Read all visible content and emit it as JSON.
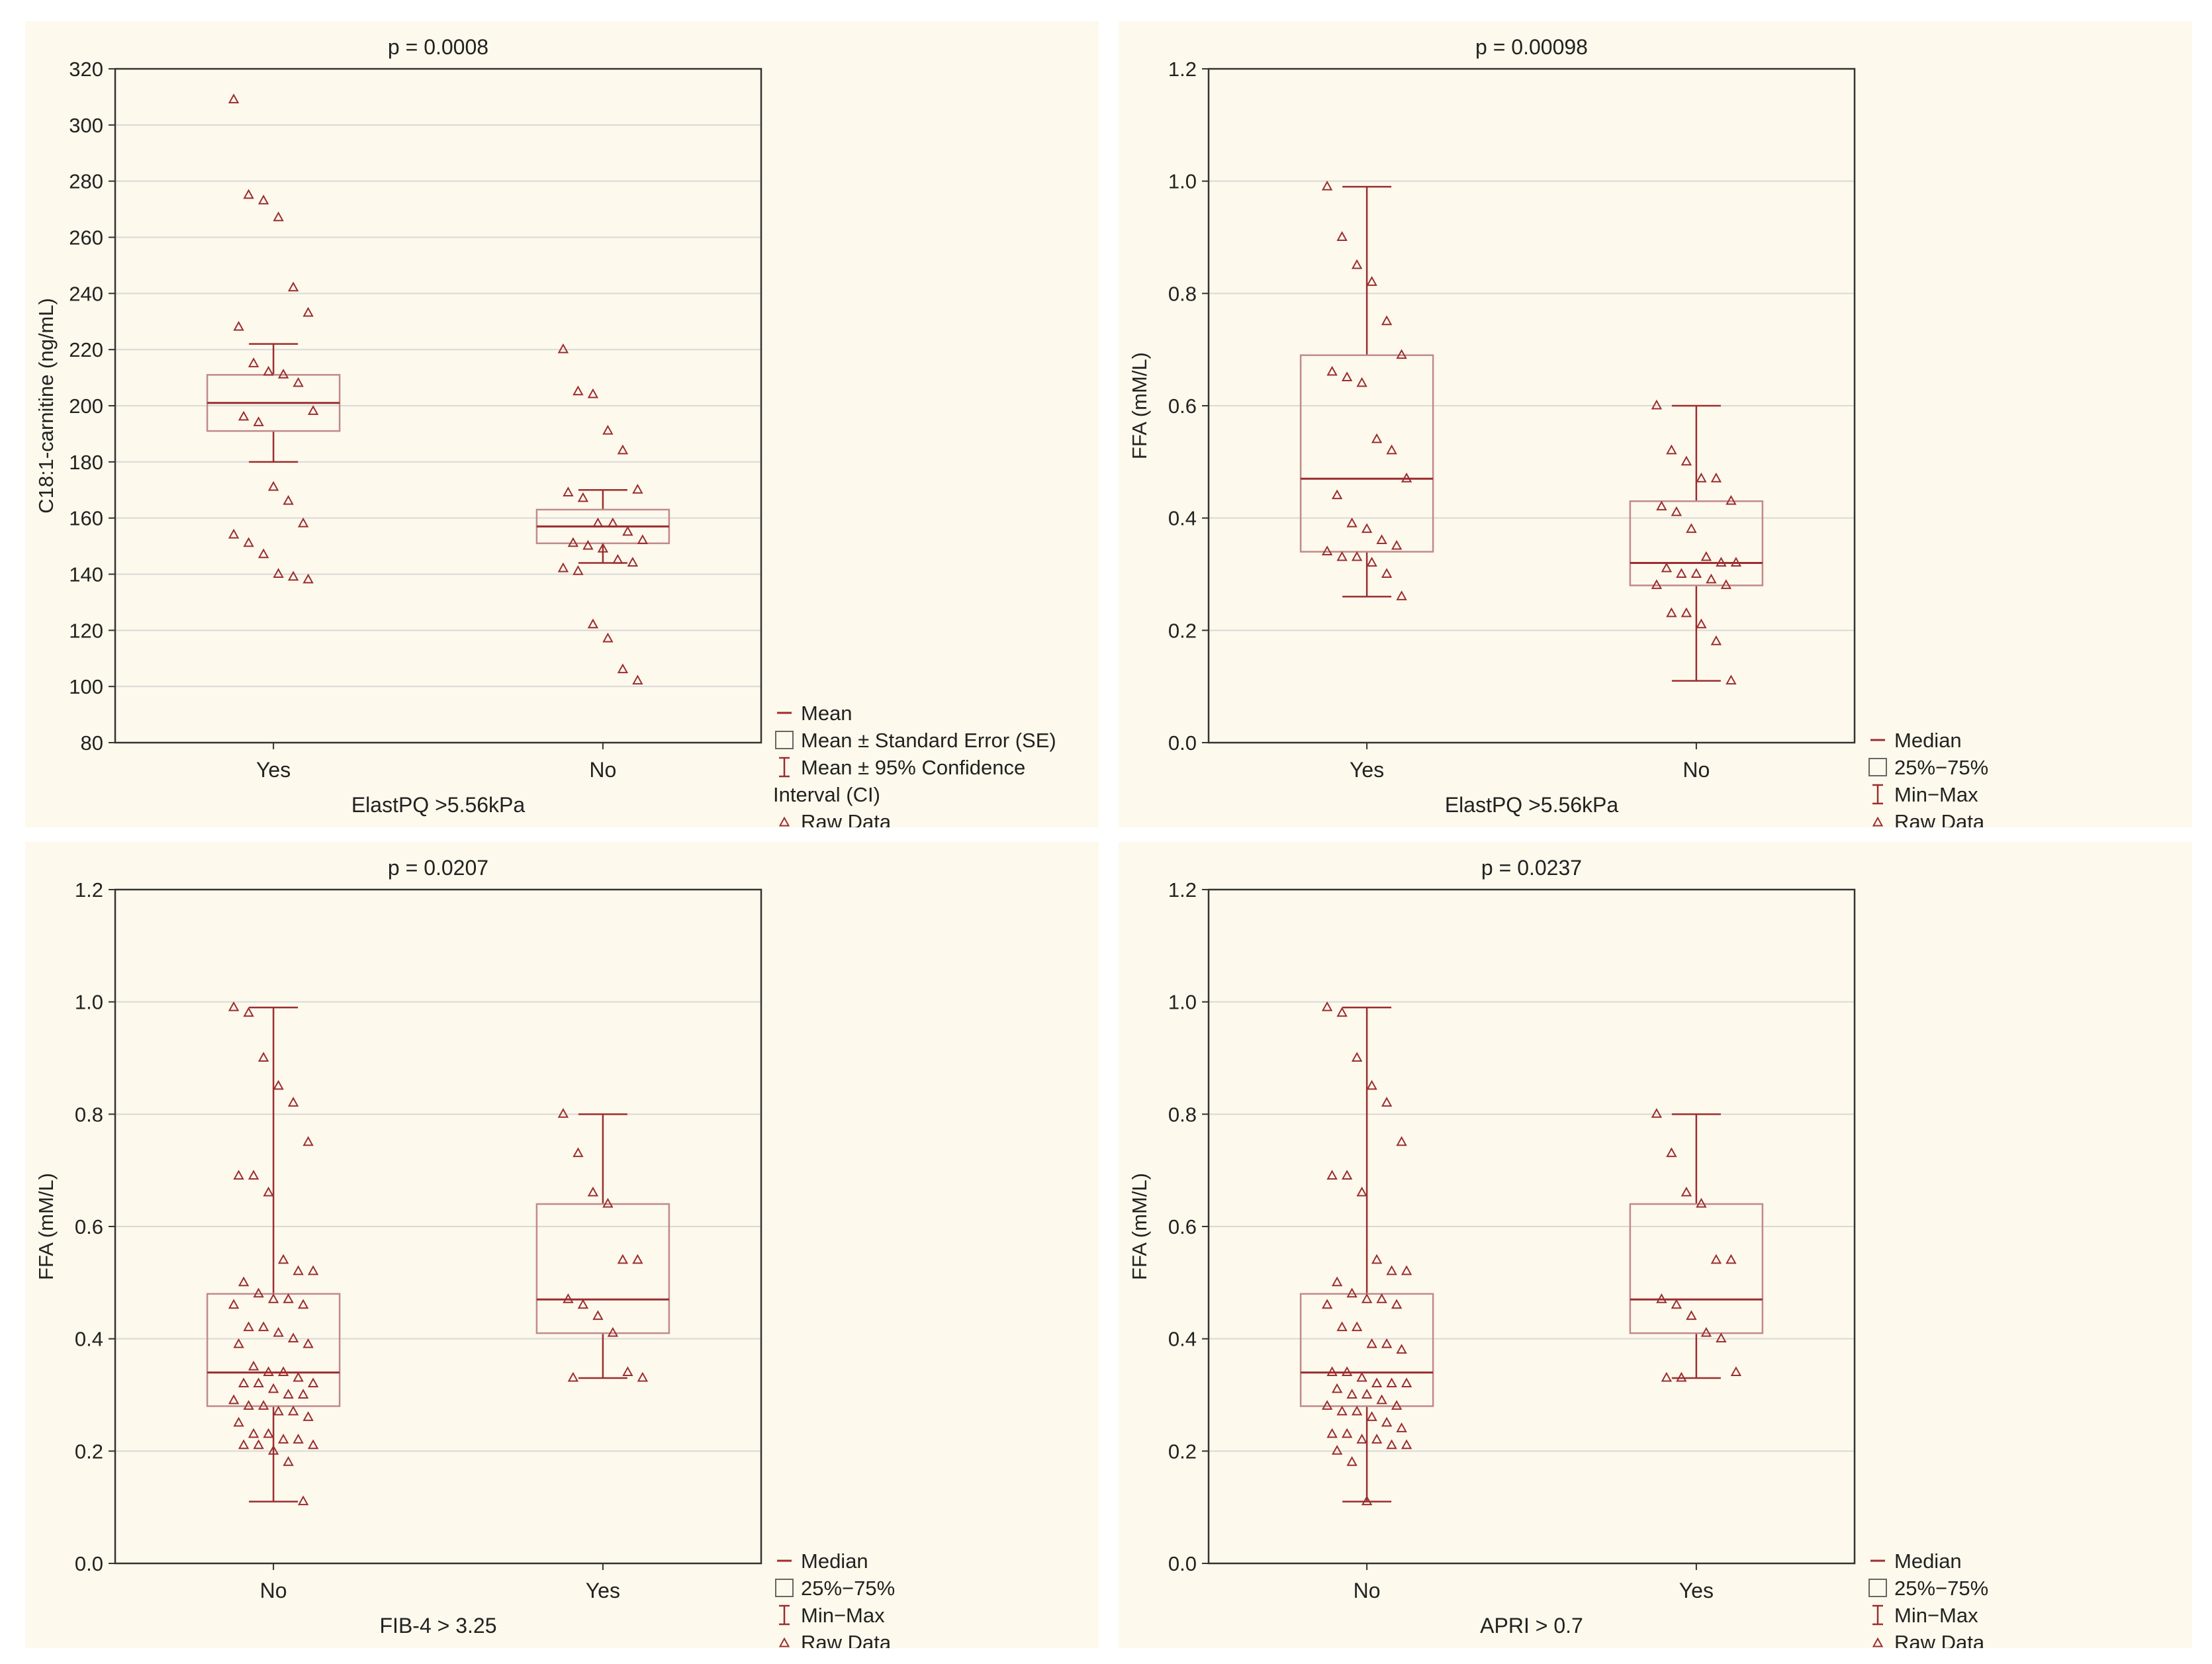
{
  "chart_data": [
    {
      "type": "box",
      "title": "p = 0.0008",
      "xlabel": "ElastPQ >5.56kPa",
      "ylabel": "C18:1-carnitine (ng/mL)",
      "ylim": [
        80,
        320
      ],
      "yticks": [
        80,
        100,
        120,
        140,
        160,
        180,
        200,
        220,
        240,
        260,
        280,
        300,
        320
      ],
      "categories": [
        "Yes",
        "No"
      ],
      "boxes": [
        {
          "center": 201,
          "box_low": 191,
          "box_high": 211,
          "whisker_low": 180,
          "whisker_high": 222
        },
        {
          "center": 157,
          "box_low": 151,
          "box_high": 163,
          "whisker_low": 144,
          "whisker_high": 170
        }
      ],
      "raw": [
        [
          309,
          275,
          273,
          267,
          242,
          233,
          228,
          215,
          212,
          211,
          208,
          198,
          196,
          194,
          171,
          166,
          158,
          154,
          151,
          147,
          140,
          139,
          138
        ],
        [
          220,
          205,
          204,
          191,
          184,
          170,
          169,
          167,
          158,
          158,
          155,
          152,
          151,
          150,
          149,
          145,
          144,
          142,
          141,
          122,
          117,
          106,
          102
        ]
      ],
      "legend": [
        "Mean",
        "Mean ± Standard Error (SE)",
        "Mean ± 95% Confidence",
        "Interval (CI)",
        "Raw Data"
      ]
    },
    {
      "type": "box",
      "title": "p = 0.00098",
      "xlabel": "ElastPQ >5.56kPa",
      "ylabel": "FFA (mM/L)",
      "ylim": [
        0.0,
        1.2
      ],
      "yticks": [
        0.0,
        0.2,
        0.4,
        0.6,
        0.8,
        1.0,
        1.2
      ],
      "categories": [
        "Yes",
        "No"
      ],
      "boxes": [
        {
          "center": 0.47,
          "box_low": 0.34,
          "box_high": 0.69,
          "whisker_low": 0.26,
          "whisker_high": 0.99
        },
        {
          "center": 0.32,
          "box_low": 0.28,
          "box_high": 0.43,
          "whisker_low": 0.11,
          "whisker_high": 0.6
        }
      ],
      "raw": [
        [
          0.99,
          0.9,
          0.85,
          0.82,
          0.75,
          0.69,
          0.66,
          0.65,
          0.64,
          0.54,
          0.52,
          0.47,
          0.44,
          0.39,
          0.38,
          0.36,
          0.35,
          0.34,
          0.33,
          0.33,
          0.32,
          0.3,
          0.26
        ],
        [
          0.6,
          0.52,
          0.5,
          0.47,
          0.47,
          0.43,
          0.42,
          0.41,
          0.38,
          0.33,
          0.32,
          0.32,
          0.31,
          0.3,
          0.3,
          0.29,
          0.28,
          0.28,
          0.23,
          0.23,
          0.21,
          0.18,
          0.11
        ]
      ],
      "legend": [
        "Median",
        "25%−75%",
        "Min−Max",
        "Raw Data"
      ]
    },
    {
      "type": "box",
      "title": "p = 0.0207",
      "xlabel": "FIB-4 > 3.25",
      "ylabel": "FFA (mM/L)",
      "ylim": [
        0.0,
        1.2
      ],
      "yticks": [
        0.0,
        0.2,
        0.4,
        0.6,
        0.8,
        1.0,
        1.2
      ],
      "categories": [
        "No",
        "Yes"
      ],
      "boxes": [
        {
          "center": 0.34,
          "box_low": 0.28,
          "box_high": 0.48,
          "whisker_low": 0.11,
          "whisker_high": 0.99
        },
        {
          "center": 0.47,
          "box_low": 0.41,
          "box_high": 0.64,
          "whisker_low": 0.33,
          "whisker_high": 0.8
        }
      ],
      "raw": [
        [
          0.99,
          0.98,
          0.9,
          0.85,
          0.82,
          0.75,
          0.69,
          0.69,
          0.66,
          0.54,
          0.52,
          0.52,
          0.5,
          0.48,
          0.47,
          0.47,
          0.46,
          0.46,
          0.42,
          0.42,
          0.41,
          0.4,
          0.39,
          0.39,
          0.35,
          0.34,
          0.34,
          0.33,
          0.32,
          0.32,
          0.32,
          0.31,
          0.3,
          0.3,
          0.29,
          0.28,
          0.28,
          0.27,
          0.27,
          0.26,
          0.25,
          0.23,
          0.23,
          0.22,
          0.22,
          0.21,
          0.21,
          0.21,
          0.2,
          0.18,
          0.11
        ],
        [
          0.8,
          0.73,
          0.66,
          0.64,
          0.54,
          0.54,
          0.47,
          0.46,
          0.44,
          0.41,
          0.34,
          0.33,
          0.33
        ]
      ],
      "legend": [
        "Median",
        "25%−75%",
        "Min−Max",
        "Raw Data"
      ]
    },
    {
      "type": "box",
      "title": "p = 0.0237",
      "xlabel": "APRI > 0.7",
      "ylabel": "FFA (mM/L)",
      "ylim": [
        0.0,
        1.2
      ],
      "yticks": [
        0.0,
        0.2,
        0.4,
        0.6,
        0.8,
        1.0,
        1.2
      ],
      "categories": [
        "No",
        "Yes"
      ],
      "boxes": [
        {
          "center": 0.34,
          "box_low": 0.28,
          "box_high": 0.48,
          "whisker_low": 0.11,
          "whisker_high": 0.99
        },
        {
          "center": 0.47,
          "box_low": 0.41,
          "box_high": 0.64,
          "whisker_low": 0.33,
          "whisker_high": 0.8
        }
      ],
      "raw": [
        [
          0.99,
          0.98,
          0.9,
          0.85,
          0.82,
          0.75,
          0.69,
          0.69,
          0.66,
          0.54,
          0.52,
          0.52,
          0.5,
          0.48,
          0.47,
          0.47,
          0.46,
          0.46,
          0.42,
          0.42,
          0.39,
          0.39,
          0.38,
          0.34,
          0.34,
          0.33,
          0.32,
          0.32,
          0.32,
          0.31,
          0.3,
          0.3,
          0.29,
          0.28,
          0.28,
          0.27,
          0.27,
          0.26,
          0.25,
          0.24,
          0.23,
          0.23,
          0.22,
          0.22,
          0.21,
          0.21,
          0.2,
          0.18,
          0.11
        ],
        [
          0.8,
          0.73,
          0.66,
          0.64,
          0.54,
          0.54,
          0.47,
          0.46,
          0.44,
          0.41,
          0.4,
          0.34,
          0.33,
          0.33
        ]
      ],
      "legend": [
        "Median",
        "25%−75%",
        "Min−Max",
        "Raw Data"
      ]
    }
  ]
}
